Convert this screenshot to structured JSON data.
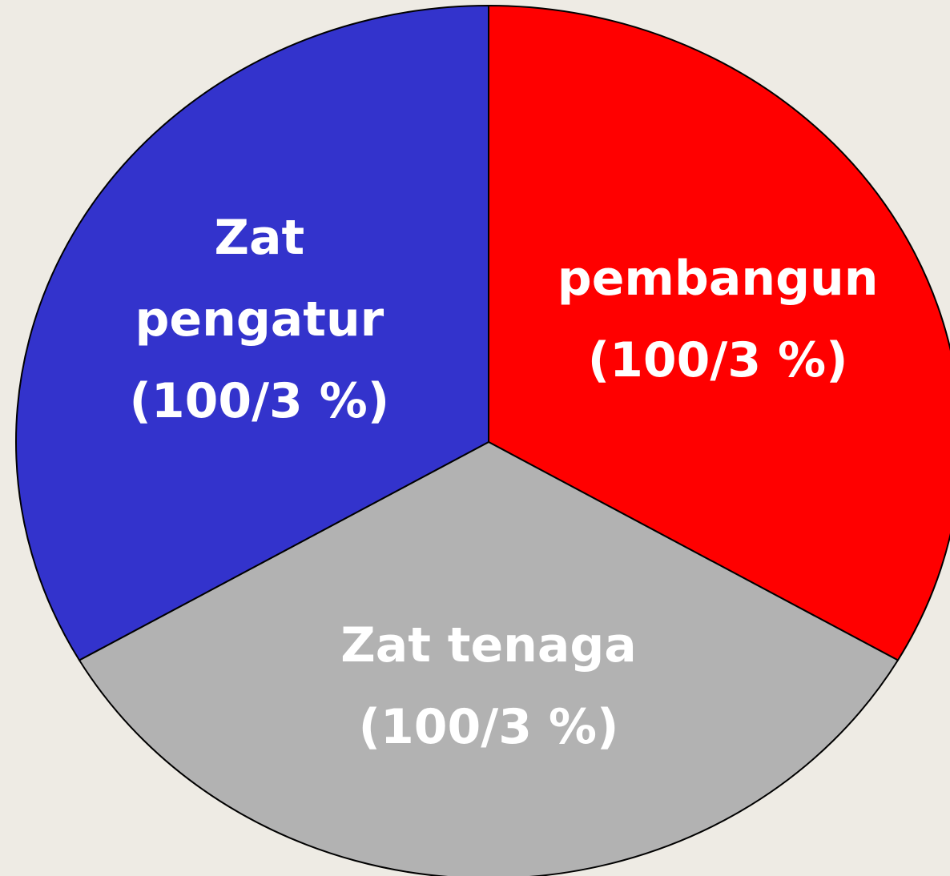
{
  "chart_data": {
    "type": "pie",
    "categories": [
      "pembangun",
      "Zat tenaga",
      "Zat pengatur"
    ],
    "values": [
      33.333,
      33.333,
      33.333
    ],
    "value_labels": [
      "(100/3 %)",
      "(100/3 %)",
      "(100/3 %)"
    ],
    "colors": [
      "#ff0000",
      "#b2b2b2",
      "#3333cc"
    ]
  }
}
